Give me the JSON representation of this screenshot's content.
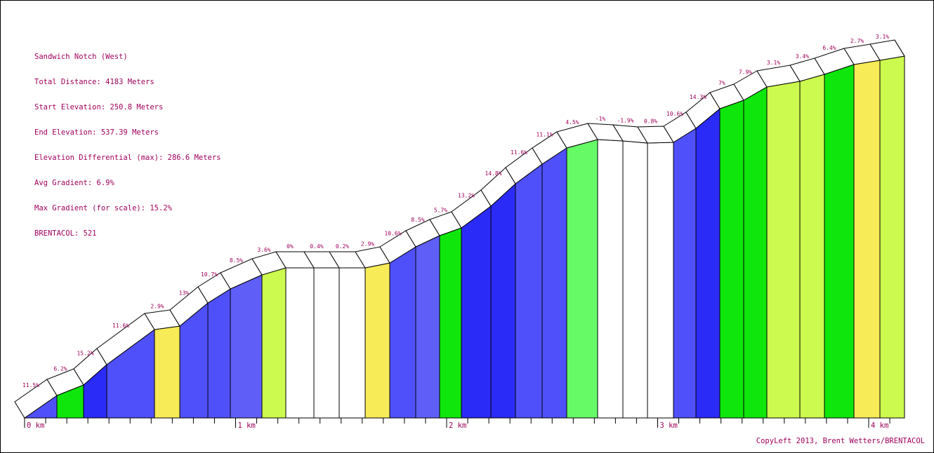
{
  "info": {
    "route": "Sandwich Notch (West)",
    "total_distance": "Total Distance: 4183 Meters",
    "start_elevation": "Start Elevation: 250.8 Meters",
    "end_elevation": "End Elevation: 537.39 Meters",
    "elevation_differential": "Elevation Differential (max): 286.6 Meters",
    "avg_gradient": "Avg Gradient: 6.9%",
    "max_gradient": "Max Gradient (for scale): 15.2%",
    "brentacol": "BRENTACOL: 521"
  },
  "credit": "CopyLeft 2013, Brent Wetters/BRENTACOL",
  "colors": {
    "text": "#a0005a",
    "band_top": "#ffffff",
    "outline": "#000000",
    "grade_flat": "#ffffff",
    "grade_2_4": "#f7eb57",
    "grade_4_6": "#ccfa4e",
    "grade_6_8": "#0ee60c",
    "grade_8_10": "#66fa66",
    "grade_10_12": "#5050fa",
    "grade_12_14": "#5f5ff8",
    "grade_14_plus": "#2b2bf8"
  },
  "chart_data": {
    "type": "area",
    "title": "Sandwich Notch (West)",
    "x_unit": "km",
    "xlim": [
      0,
      4.183
    ],
    "x_tick_labels": [
      "0 km",
      "1 km",
      "2 km",
      "3 km",
      "4 km"
    ],
    "start_elevation_m": 250.8,
    "end_elevation_m": 537.39,
    "segments": [
      {
        "grade": "11.5%",
        "color": "#5050fa"
      },
      {
        "grade": "6.2%",
        "color": "#0ee60c"
      },
      {
        "grade": "15.2%",
        "color": "#2b2bf8"
      },
      {
        "grade": "11.6%",
        "color": "#5050fa"
      },
      {
        "grade": "2.9%",
        "color": "#f7eb57"
      },
      {
        "grade": "13%",
        "color": "#5050fa"
      },
      {
        "grade": "10.7%",
        "color": "#5050fa"
      },
      {
        "grade": "8.5%",
        "color": "#5f5ff8"
      },
      {
        "grade": "3.6%",
        "color": "#ccfa4e"
      },
      {
        "grade": "0%",
        "color": "#ffffff"
      },
      {
        "grade": "0.4%",
        "color": "#ffffff"
      },
      {
        "grade": "0.2%",
        "color": "#ffffff"
      },
      {
        "grade": "2.9%",
        "color": "#f7eb57"
      },
      {
        "grade": "10.6%",
        "color": "#5050fa"
      },
      {
        "grade": "8.5%",
        "color": "#5f5ff8"
      },
      {
        "grade": "5.7%",
        "color": "#0ee60c"
      },
      {
        "grade": "13.2%",
        "color": "#2b2bf8"
      },
      {
        "grade": "14.8%",
        "color": "#2b2bf8"
      },
      {
        "grade": "11.6%",
        "color": "#5050fa"
      },
      {
        "grade": "11.1%",
        "color": "#5050fa"
      },
      {
        "grade": "4.5%",
        "color": "#66fa66"
      },
      {
        "grade": "-1%",
        "color": "#ffffff"
      },
      {
        "grade": "-1.9%",
        "color": "#ffffff"
      },
      {
        "grade": "0.8%",
        "color": "#ffffff"
      },
      {
        "grade": "10.6%",
        "color": "#5050fa"
      },
      {
        "grade": "14.3%",
        "color": "#2b2bf8"
      },
      {
        "grade": "7%",
        "color": "#0ee60c"
      },
      {
        "grade": "7.9%",
        "color": "#0ee60c"
      },
      {
        "grade": "3.1%",
        "color": "#ccfa4e"
      },
      {
        "grade": "3.4%",
        "color": "#ccfa4e"
      },
      {
        "grade": "6.4%",
        "color": "#0ee60c"
      },
      {
        "grade": "2.7%",
        "color": "#f7eb57"
      },
      {
        "grade": "3.1%",
        "color": "#ccfa4e"
      }
    ]
  }
}
